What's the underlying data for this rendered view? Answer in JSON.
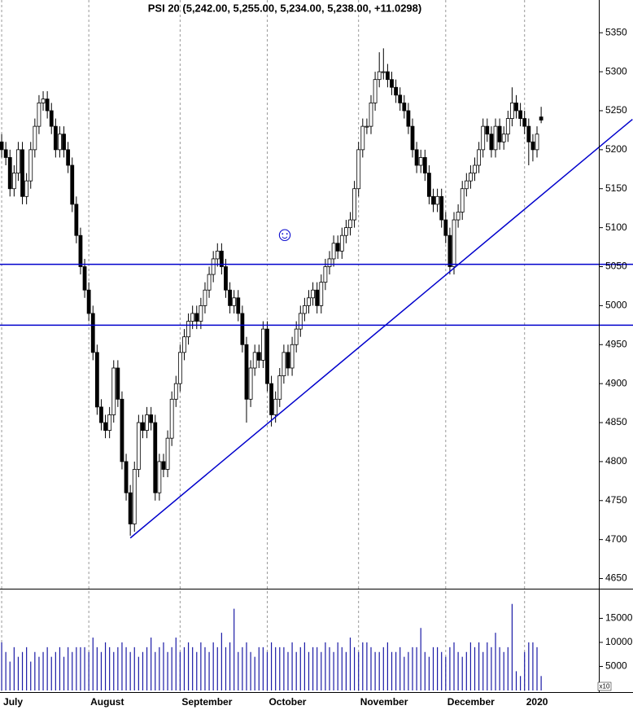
{
  "chart_data": {
    "type": "candlestick",
    "title": "PSI 20 (5,242.00, 5,255.00, 5,234.00, 5,238.00, +11.0298)",
    "xlim": [
      -0.4,
      143.7
    ],
    "xticks": [
      {
        "value": 0,
        "label": "July"
      },
      {
        "value": 21,
        "label": "August"
      },
      {
        "value": 43,
        "label": "September"
      },
      {
        "value": 64,
        "label": "October"
      },
      {
        "value": 86,
        "label": "November"
      },
      {
        "value": 107,
        "label": "December"
      },
      {
        "value": 126,
        "label": "2020"
      }
    ],
    "ylim": [
      4637,
      5392
    ],
    "yticks": [
      4650,
      4700,
      4750,
      4800,
      4850,
      4900,
      4950,
      5000,
      5050,
      5100,
      5150,
      5200,
      5250,
      5300,
      5350
    ],
    "open": [
      5210,
      5200,
      5190,
      5150,
      5170,
      5200,
      5140,
      5160,
      5200,
      5230,
      5260,
      5265,
      5250,
      5230,
      5200,
      5220,
      5200,
      5180,
      5130,
      5090,
      5050,
      5020,
      4990,
      4940,
      4870,
      4850,
      4840,
      4860,
      4920,
      4880,
      4800,
      4760,
      4720,
      4790,
      4850,
      4840,
      4860,
      4850,
      4760,
      4800,
      4790,
      4830,
      4880,
      4900,
      4940,
      4960,
      4980,
      4990,
      4980,
      5000,
      5020,
      5040,
      5060,
      5070,
      5050,
      5020,
      5000,
      5010,
      4990,
      4950,
      4880,
      4920,
      4940,
      4930,
      4970,
      4900,
      4860,
      4880,
      4910,
      4940,
      4920,
      4950,
      4970,
      4990,
      5000,
      5010,
      5020,
      5000,
      5030,
      5050,
      5060,
      5080,
      5070,
      5090,
      5100,
      5110,
      5150,
      5200,
      5230,
      5230,
      5260,
      5290,
      5300,
      5300,
      5290,
      5280,
      5270,
      5260,
      5250,
      5230,
      5200,
      5180,
      5190,
      5170,
      5140,
      5130,
      5140,
      5110,
      5090,
      5050,
      5110,
      5120,
      5150,
      5160,
      5170,
      5180,
      5200,
      5230,
      5220,
      5200,
      5230,
      5210,
      5220,
      5240,
      5260,
      5250,
      5240,
      5230,
      5210,
      5200,
      5242
    ],
    "high": [
      5220,
      5210,
      5200,
      5180,
      5210,
      5210,
      5170,
      5210,
      5240,
      5270,
      5275,
      5275,
      5260,
      5240,
      5230,
      5230,
      5210,
      5190,
      5140,
      5100,
      5060,
      5030,
      5000,
      4950,
      4880,
      4860,
      4870,
      4930,
      4930,
      4890,
      4810,
      4770,
      4800,
      4860,
      4860,
      4870,
      4870,
      4860,
      4810,
      4810,
      4840,
      4890,
      4910,
      4950,
      4970,
      4990,
      5000,
      5000,
      5010,
      5030,
      5050,
      5070,
      5080,
      5080,
      5060,
      5030,
      5020,
      5020,
      5000,
      4960,
      4930,
      4950,
      4950,
      4980,
      4980,
      4910,
      4890,
      4920,
      4950,
      4950,
      4960,
      4980,
      5000,
      5010,
      5020,
      5030,
      5030,
      5040,
      5060,
      5070,
      5090,
      5090,
      5100,
      5110,
      5120,
      5160,
      5210,
      5240,
      5240,
      5270,
      5300,
      5325,
      5330,
      5310,
      5300,
      5290,
      5280,
      5270,
      5260,
      5240,
      5210,
      5200,
      5200,
      5180,
      5150,
      5150,
      5150,
      5120,
      5100,
      5120,
      5130,
      5160,
      5170,
      5180,
      5190,
      5210,
      5240,
      5240,
      5230,
      5240,
      5240,
      5230,
      5250,
      5280,
      5270,
      5260,
      5250,
      5240,
      5220,
      5230,
      5255
    ],
    "low": [
      5190,
      5180,
      5140,
      5140,
      5160,
      5130,
      5130,
      5150,
      5190,
      5220,
      5250,
      5240,
      5220,
      5190,
      5190,
      5190,
      5170,
      5120,
      5080,
      5040,
      5010,
      4980,
      4930,
      4860,
      4840,
      4830,
      4830,
      4850,
      4870,
      4790,
      4750,
      4705,
      4710,
      4780,
      4830,
      4830,
      4840,
      4750,
      4750,
      4780,
      4780,
      4820,
      4870,
      4890,
      4930,
      4950,
      4970,
      4970,
      4970,
      4990,
      5010,
      5030,
      5050,
      5040,
      5010,
      4990,
      4990,
      4980,
      4940,
      4850,
      4870,
      4910,
      4920,
      4920,
      4890,
      4845,
      4850,
      4870,
      4900,
      4910,
      4910,
      4940,
      4960,
      4980,
      4990,
      5000,
      4990,
      4990,
      5020,
      5040,
      5050,
      5060,
      5060,
      5080,
      5090,
      5100,
      5140,
      5190,
      5220,
      5220,
      5250,
      5280,
      5290,
      5280,
      5270,
      5260,
      5250,
      5240,
      5220,
      5190,
      5170,
      5170,
      5160,
      5130,
      5120,
      5120,
      5100,
      5080,
      5040,
      5040,
      5100,
      5110,
      5140,
      5150,
      5160,
      5170,
      5190,
      5210,
      5190,
      5190,
      5200,
      5200,
      5210,
      5230,
      5240,
      5230,
      5220,
      5180,
      5185,
      5190,
      5234
    ],
    "close": [
      5200,
      5190,
      5150,
      5170,
      5200,
      5140,
      5160,
      5200,
      5230,
      5260,
      5265,
      5250,
      5230,
      5200,
      5220,
      5200,
      5180,
      5130,
      5090,
      5050,
      5020,
      4990,
      4940,
      4870,
      4850,
      4840,
      4860,
      4920,
      4880,
      4800,
      4760,
      4720,
      4790,
      4850,
      4840,
      4860,
      4850,
      4760,
      4800,
      4790,
      4830,
      4880,
      4900,
      4940,
      4960,
      4980,
      4990,
      4980,
      5000,
      5020,
      5040,
      5060,
      5070,
      5050,
      5020,
      5000,
      5010,
      4990,
      4950,
      4880,
      4920,
      4940,
      4930,
      4970,
      4900,
      4860,
      4880,
      4910,
      4940,
      4920,
      4950,
      4970,
      4990,
      5000,
      5010,
      5020,
      5000,
      5030,
      5050,
      5060,
      5080,
      5070,
      5090,
      5100,
      5110,
      5150,
      5200,
      5230,
      5230,
      5260,
      5290,
      5300,
      5300,
      5290,
      5280,
      5270,
      5260,
      5250,
      5230,
      5200,
      5180,
      5190,
      5170,
      5140,
      5130,
      5140,
      5110,
      5090,
      5050,
      5110,
      5120,
      5150,
      5160,
      5170,
      5180,
      5200,
      5230,
      5220,
      5200,
      5230,
      5210,
      5220,
      5240,
      5260,
      5250,
      5240,
      5230,
      5210,
      5200,
      5220,
      5238
    ],
    "hlines": [
      5053,
      4975
    ],
    "trendline": [
      {
        "x": 31,
        "y": 4702
      },
      {
        "x": 152,
        "y": 5239
      }
    ],
    "line_color": "#0000cc",
    "volume": {
      "ylim": [
        0,
        21000
      ],
      "yticks": [
        5000,
        10000,
        15000
      ],
      "unit_label": "x10",
      "color": "#1a1aa6",
      "values": [
        10000,
        8000,
        6000,
        9000,
        7000,
        8000,
        9000,
        6000,
        8000,
        7000,
        8000,
        9000,
        7000,
        8000,
        9000,
        7000,
        9000,
        8000,
        9000,
        9000,
        9000,
        8000,
        11000,
        9000,
        8000,
        10000,
        9000,
        8000,
        9000,
        10000,
        9000,
        8000,
        9000,
        7000,
        8000,
        9000,
        11000,
        8000,
        9000,
        10000,
        8000,
        9000,
        11000,
        8000,
        9000,
        10000,
        9000,
        8000,
        10000,
        9000,
        8000,
        10000,
        9000,
        12000,
        9000,
        10000,
        17000,
        8000,
        9000,
        10000,
        8000,
        7000,
        9000,
        9000,
        8000,
        10000,
        9000,
        9000,
        9000,
        8000,
        10000,
        8000,
        9000,
        10000,
        8000,
        9000,
        9000,
        8000,
        10000,
        9000,
        8000,
        10000,
        9000,
        8000,
        11000,
        9000,
        8000,
        10000,
        10000,
        9000,
        8000,
        8000,
        9000,
        10000,
        8000,
        8000,
        9000,
        7000,
        8000,
        9000,
        9000,
        13000,
        8000,
        7000,
        9000,
        9000,
        8000,
        7000,
        9000,
        10000,
        8000,
        7000,
        8000,
        10000,
        9000,
        10000,
        8000,
        10000,
        9000,
        12000,
        9000,
        8000,
        9000,
        18000,
        4000,
        3000,
        8000,
        10000,
        10000,
        9000,
        3000
      ]
    }
  }
}
